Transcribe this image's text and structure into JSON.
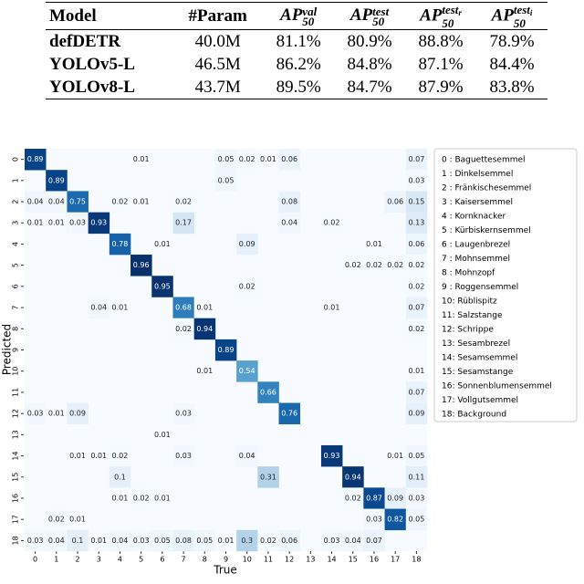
{
  "table": {
    "header": [
      "Model",
      "#Param",
      {
        "base": "AP",
        "sub": "50",
        "sup": "val"
      },
      {
        "base": "AP",
        "sub": "50",
        "sup": "test"
      },
      {
        "base": "AP",
        "sub": "50",
        "sup": "test",
        "sup_sub": "r"
      },
      {
        "base": "AP",
        "sub": "50",
        "sup": "test",
        "sup_sub": "i"
      }
    ],
    "rows": [
      [
        "defDETR",
        "40.0M",
        "81.1%",
        "80.9%",
        "88.8%",
        "78.9%"
      ],
      [
        "YOLOv5-L",
        "46.5M",
        "86.2%",
        "84.8%",
        "87.1%",
        "84.4%"
      ],
      [
        "YOLOv8-L",
        "43.7M",
        "89.5%",
        "84.7%",
        "87.9%",
        "83.8%"
      ]
    ]
  },
  "chart_data": {
    "type": "heatmap",
    "x_label": "True",
    "y_label": "Predicted",
    "categories": [
      "0",
      "1",
      "2",
      "3",
      "4",
      "5",
      "6",
      "7",
      "8",
      "9",
      "10",
      "11",
      "12",
      "13",
      "14",
      "15",
      "16",
      "17",
      "18"
    ],
    "colormap": "Blues",
    "legend": [
      "0 : Baguettesemmel",
      "1 : Dinkelsemmel",
      "2 : Fränkischesemmel",
      "3 : Kaisersemmel",
      "4 : Kornknacker",
      "5 : Kürbiskernsemmel",
      "6 : Laugenbrezel",
      "7 : Mohnsemmel",
      "8 : Mohnzopf",
      "9 : Roggensemmel",
      "10: Rüblispitz",
      "11: Salzstange",
      "12: Schrippe",
      "13: Sesambrezel",
      "14: Sesamsemmel",
      "15: Sesamstange",
      "16: Sonnenblumensemmel",
      "17: Vollgutsemmel",
      "18: Background"
    ],
    "values": [
      [
        0.89,
        null,
        null,
        null,
        null,
        0.01,
        null,
        null,
        null,
        0.05,
        0.02,
        0.01,
        0.06,
        null,
        null,
        null,
        null,
        null,
        0.07
      ],
      [
        null,
        0.89,
        null,
        null,
        null,
        null,
        null,
        null,
        null,
        0.05,
        null,
        null,
        null,
        null,
        null,
        null,
        null,
        null,
        0.03
      ],
      [
        0.04,
        0.04,
        0.75,
        null,
        0.02,
        0.01,
        null,
        0.02,
        null,
        null,
        null,
        null,
        0.08,
        null,
        null,
        null,
        null,
        0.06,
        0.15
      ],
      [
        0.01,
        0.01,
        0.03,
        0.93,
        null,
        null,
        null,
        0.17,
        null,
        null,
        null,
        null,
        0.04,
        null,
        0.02,
        null,
        null,
        null,
        0.13
      ],
      [
        null,
        null,
        null,
        null,
        0.78,
        null,
        0.01,
        null,
        null,
        null,
        0.09,
        null,
        null,
        null,
        null,
        null,
        0.01,
        null,
        0.06
      ],
      [
        null,
        null,
        null,
        null,
        null,
        0.96,
        null,
        null,
        null,
        null,
        null,
        null,
        null,
        null,
        null,
        0.02,
        0.02,
        0.02,
        0.02
      ],
      [
        null,
        null,
        null,
        null,
        null,
        null,
        0.95,
        null,
        null,
        null,
        0.02,
        null,
        null,
        null,
        null,
        null,
        null,
        null,
        0.02
      ],
      [
        null,
        null,
        null,
        0.04,
        0.01,
        null,
        null,
        0.68,
        0.01,
        null,
        null,
        null,
        null,
        null,
        0.01,
        null,
        null,
        null,
        0.07
      ],
      [
        null,
        null,
        null,
        null,
        null,
        null,
        null,
        0.02,
        0.94,
        null,
        null,
        null,
        null,
        null,
        null,
        null,
        null,
        null,
        0.02
      ],
      [
        null,
        null,
        null,
        null,
        null,
        null,
        null,
        null,
        null,
        0.89,
        null,
        null,
        null,
        null,
        null,
        null,
        null,
        null,
        null
      ],
      [
        null,
        null,
        null,
        null,
        null,
        null,
        null,
        null,
        0.01,
        null,
        0.54,
        null,
        null,
        null,
        null,
        null,
        null,
        null,
        0.01
      ],
      [
        null,
        null,
        null,
        null,
        null,
        null,
        null,
        null,
        null,
        null,
        null,
        0.66,
        null,
        null,
        null,
        null,
        null,
        null,
        0.07
      ],
      [
        0.03,
        0.01,
        0.09,
        null,
        null,
        null,
        null,
        0.03,
        null,
        null,
        null,
        null,
        0.76,
        null,
        null,
        null,
        null,
        null,
        0.09
      ],
      [
        null,
        null,
        null,
        null,
        null,
        null,
        0.01,
        null,
        null,
        null,
        null,
        null,
        null,
        null,
        null,
        null,
        null,
        null,
        null
      ],
      [
        null,
        null,
        0.01,
        0.01,
        0.02,
        null,
        null,
        0.03,
        null,
        null,
        0.04,
        null,
        null,
        null,
        0.93,
        null,
        null,
        0.01,
        0.05
      ],
      [
        null,
        null,
        null,
        null,
        0.1,
        null,
        null,
        null,
        null,
        null,
        null,
        0.31,
        null,
        null,
        null,
        0.94,
        null,
        null,
        0.11
      ],
      [
        null,
        null,
        null,
        null,
        0.01,
        0.02,
        0.01,
        null,
        null,
        null,
        null,
        null,
        null,
        null,
        null,
        0.02,
        0.87,
        0.09,
        0.03
      ],
      [
        null,
        0.02,
        0.01,
        null,
        null,
        null,
        null,
        null,
        null,
        null,
        null,
        null,
        null,
        null,
        null,
        null,
        0.03,
        0.82,
        0.05
      ],
      [
        0.03,
        0.04,
        0.1,
        0.01,
        0.04,
        0.03,
        0.05,
        0.08,
        0.05,
        0.01,
        0.3,
        0.02,
        0.06,
        null,
        0.03,
        0.04,
        0.07,
        null,
        null
      ]
    ]
  }
}
